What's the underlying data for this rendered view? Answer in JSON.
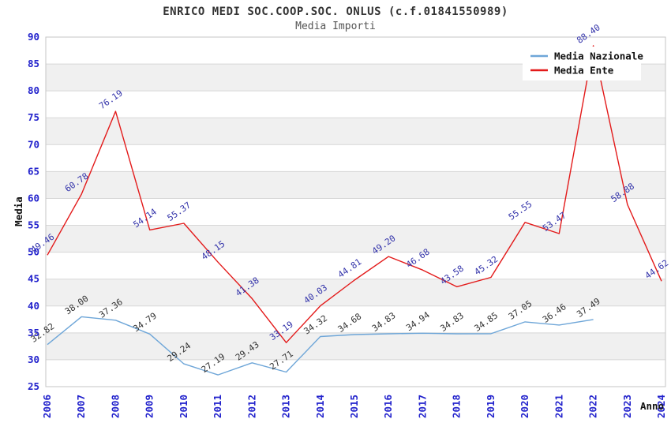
{
  "header": {
    "title": "ENRICO MEDI SOC.COOP.SOC. ONLUS (c.f.01841550989)",
    "subtitle": "Media Importi"
  },
  "chart_data": {
    "type": "line",
    "title": "ENRICO MEDI SOC.COOP.SOC. ONLUS (c.f.01841550989)",
    "subtitle": "Media Importi",
    "xlabel": "Anno",
    "ylabel": "Media",
    "x": [
      "2006",
      "2007",
      "2008",
      "2009",
      "2010",
      "2011",
      "2012",
      "2013",
      "2014",
      "2015",
      "2016",
      "2017",
      "2018",
      "2019",
      "2020",
      "2021",
      "2022",
      "2023",
      "2024"
    ],
    "series": [
      {
        "name": "Media Nazionale",
        "color": "#6ea6d8",
        "label_color": "#333333",
        "values": [
          32.82,
          38.0,
          37.36,
          34.79,
          29.24,
          27.19,
          29.43,
          27.71,
          34.32,
          34.68,
          34.83,
          34.94,
          34.83,
          34.85,
          37.05,
          36.46,
          37.49,
          null,
          null
        ]
      },
      {
        "name": "Media Ente",
        "color": "#e31a1a",
        "label_color": "#3333aa",
        "values": [
          49.46,
          60.78,
          76.19,
          54.14,
          55.37,
          48.15,
          41.38,
          33.19,
          40.03,
          44.81,
          49.2,
          46.68,
          43.58,
          45.32,
          55.55,
          53.47,
          88.4,
          58.88,
          44.62
        ]
      }
    ],
    "ylim": [
      25,
      90
    ],
    "ytick_step": 5,
    "grid": true,
    "legend_position": "top-right",
    "band_color": "#f0f0f0",
    "grid_color": "#d7d7d7",
    "spine_color": "#c6c6c6",
    "tick_color": "#2222cc",
    "axis_label_color": "#111111",
    "legend_text_color": "#111111"
  }
}
